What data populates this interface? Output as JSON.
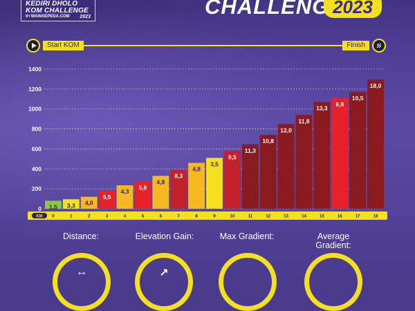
{
  "header": {
    "logo_line1": "KEDIRI DHOLO",
    "logo_line2": "KOM CHALLENGE",
    "logo_by": "BY",
    "logo_sponsor": "MAINSEPEDA.COM",
    "logo_year": "2023",
    "title": "CHALLENGE",
    "year": "2023"
  },
  "track": {
    "start_label": "Start KOM",
    "finish_label": "Finish"
  },
  "stats": {
    "distance_label": "Distance:",
    "elevation_label": "Elevation Gain:",
    "max_gradient_label": "Max Gradient:",
    "avg_gradient_label": "Average Gradient:"
  },
  "chart_data": {
    "type": "bar",
    "title": "",
    "xlabel": "KM",
    "ylabel": "",
    "ylim": [
      0,
      1400
    ],
    "yticks": [
      0,
      200,
      400,
      600,
      800,
      1000,
      1200,
      1400
    ],
    "categories": [
      "0",
      "1",
      "2",
      "3",
      "4",
      "5",
      "6",
      "7",
      "8",
      "9",
      "10",
      "11",
      "12",
      "13",
      "14",
      "15",
      "16",
      "17",
      "18"
    ],
    "values": [
      80,
      95,
      120,
      180,
      235,
      275,
      330,
      390,
      460,
      510,
      580,
      645,
      740,
      850,
      940,
      1070,
      1110,
      1170,
      1295
    ],
    "labels": [
      "1,5",
      "3,3",
      "4,0",
      "5,5",
      "4,3",
      "5,8",
      "4,8",
      "8,3",
      "4,8",
      "3,5",
      "9,5",
      "11,3",
      "10,8",
      "12,0",
      "11,8",
      "13,3",
      "6,8",
      "10,5",
      "18,0"
    ],
    "colors": [
      "#8dc63f",
      "#f5e020",
      "#f5b820",
      "#e8202a",
      "#f5b820",
      "#e8202a",
      "#f5b820",
      "#c0212a",
      "#f5b820",
      "#f5e020",
      "#c0212a",
      "#8b1a1e",
      "#8b1a1e",
      "#8b1a1e",
      "#8b1a1e",
      "#8b1a1e",
      "#e8202a",
      "#8b1a1e",
      "#8b1a1e"
    ],
    "label_colors": [
      "#2b2260",
      "#2b2260",
      "#2b2260",
      "#ffffff",
      "#2b2260",
      "#ffffff",
      "#2b2260",
      "#ffffff",
      "#2b2260",
      "#2b2260",
      "#ffffff",
      "#ffffff",
      "#ffffff",
      "#ffffff",
      "#ffffff",
      "#ffffff",
      "#ffffff",
      "#ffffff",
      "#ffffff"
    ]
  }
}
